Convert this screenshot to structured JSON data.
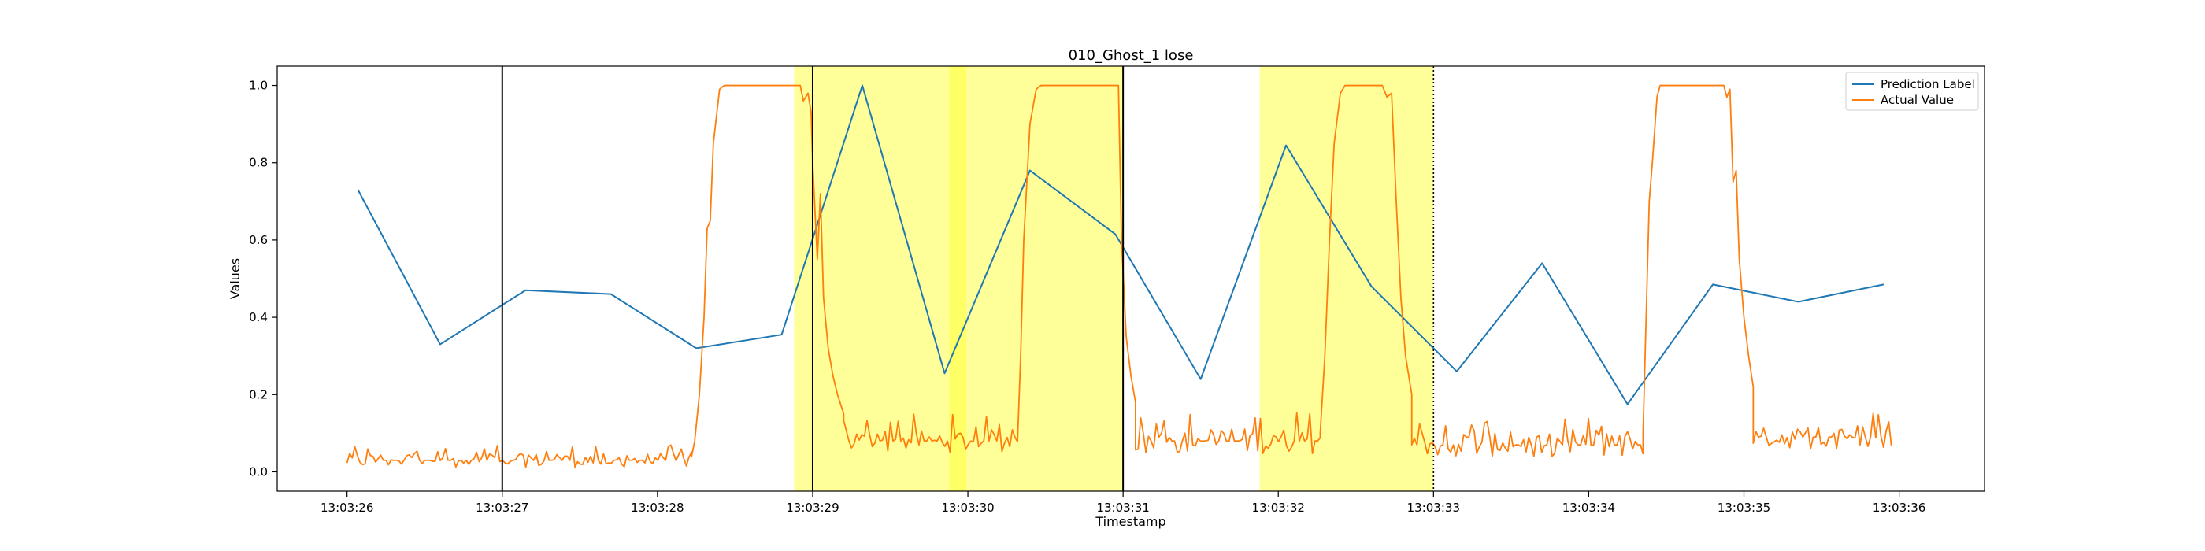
{
  "chart_data": {
    "type": "line",
    "title": "010_Ghost_1 lose",
    "xlabel": "Timestamp",
    "ylabel": "Values",
    "x_range": [
      25.55,
      36.55
    ],
    "ylim": [
      -0.05,
      1.05
    ],
    "x_ticks": [
      {
        "value": 26,
        "label": "13:03:26"
      },
      {
        "value": 27,
        "label": "13:03:27"
      },
      {
        "value": 28,
        "label": "13:03:28"
      },
      {
        "value": 29,
        "label": "13:03:29"
      },
      {
        "value": 30,
        "label": "13:03:30"
      },
      {
        "value": 31,
        "label": "13:03:31"
      },
      {
        "value": 32,
        "label": "13:03:32"
      },
      {
        "value": 33,
        "label": "13:03:33"
      },
      {
        "value": 34,
        "label": "13:03:34"
      },
      {
        "value": 35,
        "label": "13:03:35"
      },
      {
        "value": 36,
        "label": "13:03:36"
      }
    ],
    "y_ticks": [
      {
        "value": 0.0,
        "label": "0.0"
      },
      {
        "value": 0.2,
        "label": "0.2"
      },
      {
        "value": 0.4,
        "label": "0.4"
      },
      {
        "value": 0.6,
        "label": "0.6"
      },
      {
        "value": 0.8,
        "label": "0.8"
      },
      {
        "value": 1.0,
        "label": "1.0"
      }
    ],
    "legend_position": "top-right",
    "grid": false,
    "highlight_spans": [
      {
        "start": 28.88,
        "end": 31.0,
        "color": "#ffff99"
      },
      {
        "start": 29.88,
        "end": 29.99,
        "color": "#ffff66"
      },
      {
        "start": 31.88,
        "end": 33.0,
        "color": "#ffff99"
      }
    ],
    "vertical_lines": [
      {
        "x": 27.0,
        "style": "solid",
        "color": "#000000"
      },
      {
        "x": 29.0,
        "style": "solid",
        "color": "#000000"
      },
      {
        "x": 31.0,
        "style": "solid",
        "color": "#000000"
      },
      {
        "x": 33.0,
        "style": "dotted",
        "color": "#000000"
      }
    ],
    "series": [
      {
        "name": "Prediction Label",
        "color": "#1f77b4",
        "x": [
          26.07,
          26.6,
          27.15,
          27.7,
          28.25,
          28.8,
          29.32,
          29.85,
          30.4,
          30.95,
          31.5,
          32.05,
          32.6,
          33.15,
          33.7,
          34.25,
          34.8,
          35.35,
          35.9
        ],
        "y": [
          0.73,
          0.33,
          0.47,
          0.46,
          0.32,
          0.355,
          1.0,
          0.255,
          0.78,
          0.615,
          0.24,
          0.845,
          0.48,
          0.26,
          0.54,
          0.175,
          0.485,
          0.44,
          0.485
        ]
      },
      {
        "name": "Actual Value",
        "color": "#ff7f0e",
        "regions": [
          {
            "type": "noise",
            "start": 26.0,
            "end": 28.22,
            "base": 0.03,
            "amp": 0.06
          },
          {
            "type": "rise",
            "points": [
              [
                28.22,
                0.04
              ],
              [
                28.24,
                0.08
              ],
              [
                28.27,
                0.2
              ],
              [
                28.3,
                0.4
              ],
              [
                28.32,
                0.63
              ],
              [
                28.34,
                0.65
              ],
              [
                28.36,
                0.85
              ],
              [
                28.4,
                0.99
              ],
              [
                28.43,
                1.0
              ]
            ]
          },
          {
            "type": "flat",
            "points": [
              [
                28.43,
                1.0
              ],
              [
                28.92,
                1.0
              ],
              [
                28.94,
                0.96
              ],
              [
                28.97,
                0.98
              ],
              [
                28.99,
                0.93
              ],
              [
                29.0,
                0.8
              ]
            ]
          },
          {
            "type": "fall",
            "points": [
              [
                29.0,
                0.8
              ],
              [
                29.03,
                0.55
              ],
              [
                29.05,
                0.72
              ],
              [
                29.07,
                0.45
              ],
              [
                29.1,
                0.32
              ],
              [
                29.13,
                0.25
              ],
              [
                29.16,
                0.2
              ],
              [
                29.2,
                0.15
              ]
            ]
          },
          {
            "type": "noise",
            "start": 29.2,
            "end": 30.32,
            "base": 0.08,
            "amp": 0.1
          },
          {
            "type": "rise",
            "points": [
              [
                30.32,
                0.08
              ],
              [
                30.34,
                0.3
              ],
              [
                30.36,
                0.6
              ],
              [
                30.4,
                0.9
              ],
              [
                30.44,
                0.99
              ],
              [
                30.47,
                1.0
              ]
            ]
          },
          {
            "type": "flat",
            "points": [
              [
                30.47,
                1.0
              ],
              [
                30.97,
                1.0
              ],
              [
                30.99,
                0.6
              ]
            ]
          },
          {
            "type": "fall",
            "points": [
              [
                30.99,
                0.6
              ],
              [
                31.02,
                0.35
              ],
              [
                31.05,
                0.25
              ],
              [
                31.08,
                0.18
              ]
            ]
          },
          {
            "type": "noise",
            "start": 31.08,
            "end": 32.27,
            "base": 0.08,
            "amp": 0.11
          },
          {
            "type": "rise",
            "points": [
              [
                32.27,
                0.1
              ],
              [
                32.3,
                0.3
              ],
              [
                32.33,
                0.6
              ],
              [
                32.36,
                0.85
              ],
              [
                32.4,
                0.98
              ],
              [
                32.43,
                1.0
              ]
            ]
          },
          {
            "type": "flat",
            "points": [
              [
                32.43,
                1.0
              ],
              [
                32.67,
                1.0
              ],
              [
                32.7,
                0.97
              ],
              [
                32.73,
                0.98
              ]
            ]
          },
          {
            "type": "fall",
            "points": [
              [
                32.73,
                0.98
              ],
              [
                32.76,
                0.7
              ],
              [
                32.79,
                0.45
              ],
              [
                32.82,
                0.3
              ],
              [
                32.86,
                0.2
              ]
            ]
          },
          {
            "type": "noise",
            "start": 32.86,
            "end": 34.35,
            "base": 0.07,
            "amp": 0.1
          },
          {
            "type": "rise",
            "points": [
              [
                34.35,
                0.1
              ],
              [
                34.37,
                0.4
              ],
              [
                34.39,
                0.7
              ],
              [
                34.41,
                0.8
              ],
              [
                34.44,
                0.97
              ],
              [
                34.46,
                1.0
              ]
            ]
          },
          {
            "type": "flat",
            "points": [
              [
                34.46,
                1.0
              ],
              [
                34.87,
                1.0
              ],
              [
                34.89,
                0.97
              ],
              [
                34.91,
                0.99
              ]
            ]
          },
          {
            "type": "fall",
            "points": [
              [
                34.91,
                0.99
              ],
              [
                34.93,
                0.75
              ],
              [
                34.95,
                0.78
              ],
              [
                34.97,
                0.55
              ],
              [
                35.0,
                0.4
              ],
              [
                35.03,
                0.3
              ],
              [
                35.06,
                0.22
              ]
            ]
          },
          {
            "type": "noise",
            "start": 35.06,
            "end": 35.95,
            "base": 0.09,
            "amp": 0.1
          }
        ]
      }
    ]
  }
}
